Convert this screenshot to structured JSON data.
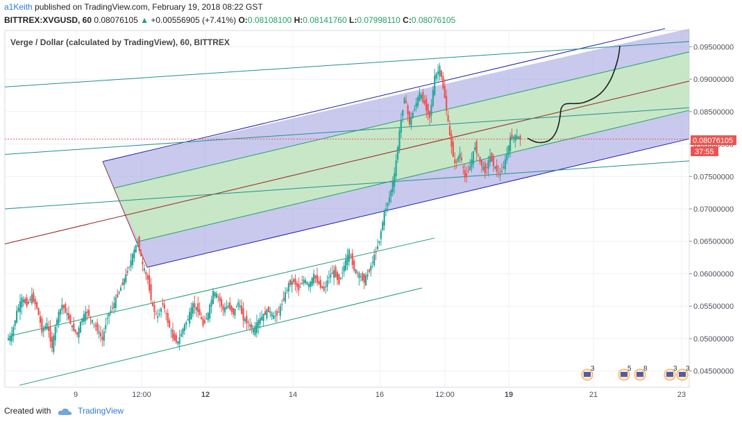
{
  "header": {
    "author": "a1Keith",
    "published_text": "published on TradingView.com, February 19, 2018 08:22 GST",
    "symbol_line": "BITTREX:XVGUSD, 60",
    "last": "0.08076105",
    "change_arrow": "▲",
    "change": "+0.00556905 (+7.41%)",
    "o_label": "O:",
    "o": "0.08108100",
    "h_label": "H:",
    "h": "0.08141760",
    "l_label": "L:",
    "l": "0.07998110",
    "c_label": "C:",
    "c": "0.08076105"
  },
  "chart_title": "Verge / Dollar (calculated by TradingView), 60, BITTREX",
  "price_tag": {
    "value": "0.08076105",
    "countdown": "37:55"
  },
  "footer": {
    "created_with": "Created with",
    "brand": "TradingView"
  },
  "colors": {
    "up": "#26a69a",
    "down": "#ef5350",
    "channel_fill": "#9c9ce0",
    "inner_fill": "#c8ecc0",
    "blue_line": "#1c1cb0",
    "green_line": "#1c9f68",
    "red_line": "#9a1c1c",
    "teal_line": "#1f8f8f"
  },
  "events": [
    {
      "label": "3",
      "x_index": 0
    },
    {
      "label": "5",
      "x_index": 1
    },
    {
      "label": "8",
      "x_index": 2
    },
    {
      "label": "3",
      "x_index": 3
    },
    {
      "label": "3",
      "x_index": 4
    }
  ],
  "chart_data": {
    "type": "candlestick",
    "title": "Verge / Dollar (calculated by TradingView), 60, BITTREX",
    "x_ticks": [
      "9",
      "12:00",
      "12",
      "14",
      "16",
      "12:00",
      "19",
      "21",
      "23"
    ],
    "y_ticks": [
      "0.09500000",
      "0.09000000",
      "0.08500000",
      "0.08000000",
      "0.07500000",
      "0.07000000",
      "0.06500000",
      "0.06000000",
      "0.05500000",
      "0.05000000",
      "0.04500000"
    ],
    "ylim": [
      0.0425,
      0.0975
    ],
    "last_price": 0.08076105,
    "price_path": [
      0.0498,
      0.0505,
      0.0541,
      0.0561,
      0.0553,
      0.0565,
      0.0548,
      0.0512,
      0.0522,
      0.0487,
      0.0531,
      0.0552,
      0.0537,
      0.0518,
      0.0506,
      0.0532,
      0.0541,
      0.0526,
      0.0514,
      0.0498,
      0.0535,
      0.0548,
      0.0567,
      0.0585,
      0.0604,
      0.0628,
      0.0651,
      0.0612,
      0.0591,
      0.0548,
      0.0532,
      0.0555,
      0.0526,
      0.0502,
      0.0494,
      0.0515,
      0.0531,
      0.0552,
      0.0544,
      0.0521,
      0.0538,
      0.0571,
      0.0565,
      0.0544,
      0.0551,
      0.0539,
      0.0556,
      0.0531,
      0.0524,
      0.0512,
      0.0527,
      0.0536,
      0.0544,
      0.0533,
      0.0541,
      0.0562,
      0.0584,
      0.0589,
      0.0576,
      0.0591,
      0.0582,
      0.0597,
      0.0584,
      0.0575,
      0.0596,
      0.0603,
      0.0587,
      0.0612,
      0.0634,
      0.0607,
      0.0598,
      0.0589,
      0.0605,
      0.0627,
      0.0652,
      0.0694,
      0.0718,
      0.0752,
      0.0818,
      0.0874,
      0.0832,
      0.0856,
      0.0878,
      0.0862,
      0.0841,
      0.0903,
      0.0917,
      0.0872,
      0.0812,
      0.0768,
      0.0785,
      0.0748,
      0.0765,
      0.0797,
      0.0772,
      0.0758,
      0.0781,
      0.0763,
      0.0752,
      0.0774,
      0.0808,
      0.0812,
      0.0808
    ],
    "annotations": {
      "regression_channel": {
        "upper_start": [
          0.0773,
          0.0978
        ],
        "lower_start": [
          0.061,
          0.0808
        ],
        "outer_band_upper": [
          0.0732,
          0.0942
        ],
        "outer_band_lower": [
          0.065,
          0.0852
        ],
        "center": [
          0.0691,
          0.0897
        ]
      },
      "lower_parallel_channel": {
        "upper": [
          0.0505,
          0.0655
        ],
        "lower": [
          0.0428,
          0.0578
        ]
      },
      "fan_lines": [
        [
          0.0888,
          0.0958
        ],
        [
          0.0784,
          0.0856
        ],
        [
          0.07,
          0.0774
        ],
        [
          0.0645,
          0.0897
        ]
      ]
    }
  }
}
